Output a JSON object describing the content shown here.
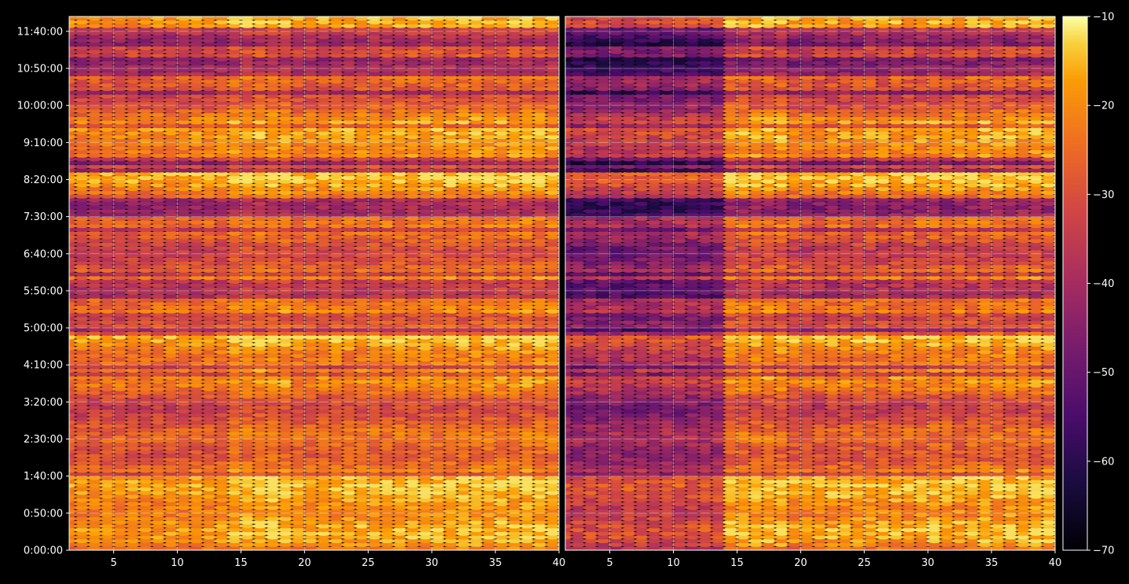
{
  "chart_data": {
    "type": "heatmap",
    "title": "",
    "colormap": "inferno",
    "background": "#000000",
    "grid": true,
    "panels": [
      {
        "name": "",
        "x_ticks": [
          5,
          10,
          15,
          20,
          25,
          30,
          35,
          40
        ],
        "xlim": [
          1.5,
          40
        ],
        "columns": 40
      },
      {
        "name": "",
        "x_ticks": [
          5,
          10,
          15,
          20,
          25,
          30,
          35,
          40
        ],
        "xlim": [
          1.5,
          40
        ],
        "columns": 40
      }
    ],
    "y_tick_labels": [
      "0:00:00",
      "0:50:00",
      "1:40:00",
      "2:30:00",
      "3:20:00",
      "4:10:00",
      "5:00:00",
      "5:50:00",
      "6:40:00",
      "7:30:00",
      "8:20:00",
      "9:10:00",
      "10:00:00",
      "10:50:00",
      "11:40:00"
    ],
    "y_tick_minutes": [
      0,
      50,
      100,
      150,
      200,
      250,
      300,
      350,
      400,
      450,
      500,
      550,
      600,
      650,
      700
    ],
    "ylim_minutes": [
      0,
      720
    ],
    "row_step_minutes": 5,
    "colorbar": {
      "ticks": [
        -10,
        -20,
        -30,
        -40,
        -50,
        -60,
        -70
      ],
      "range": [
        -70,
        -10
      ]
    },
    "value_range_note_panel_left": [
      -62,
      -12
    ],
    "value_range_note_panel_right": [
      -70,
      -12
    ]
  }
}
